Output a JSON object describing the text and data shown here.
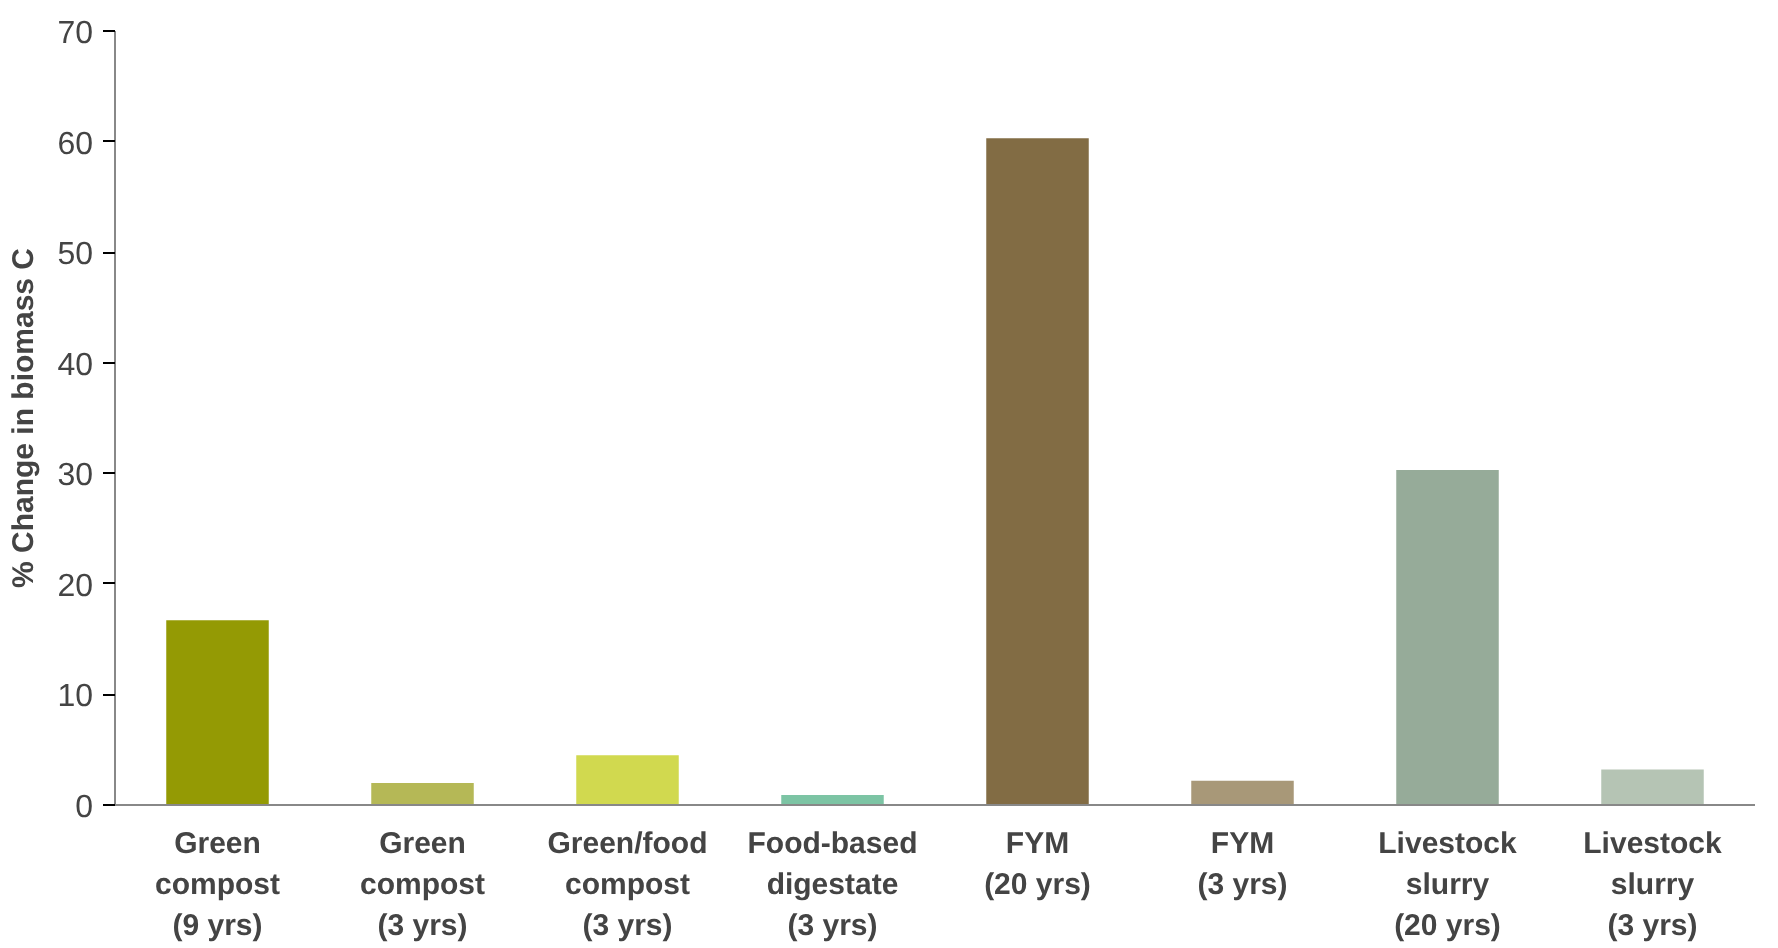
{
  "chart_data": {
    "type": "bar",
    "ylabel": "% Change in biomass C",
    "categories": [
      "Green\ncompost\n(9 yrs)",
      "Green\ncompost\n(3 yrs)",
      "Green/food\ncompost\n(3 yrs)",
      "Food-based\ndigestate\n(3 yrs)",
      "FYM\n(20 yrs)",
      "FYM\n(3 yrs)",
      "Livestock\nslurry\n(20 yrs)",
      "Livestock\nslurry\n(3 yrs)"
    ],
    "values": [
      16.7,
      2.0,
      4.5,
      0.9,
      60.3,
      2.2,
      30.3,
      3.2
    ],
    "colors": [
      "#949a04",
      "#b5b856",
      "#d1d94f",
      "#7cc4a4",
      "#826c44",
      "#a89878",
      "#96ab99",
      "#b5c4b4"
    ],
    "ylim": [
      0,
      70
    ],
    "yticks": [
      0,
      10,
      20,
      30,
      40,
      50,
      60,
      70
    ],
    "grid": false
  }
}
